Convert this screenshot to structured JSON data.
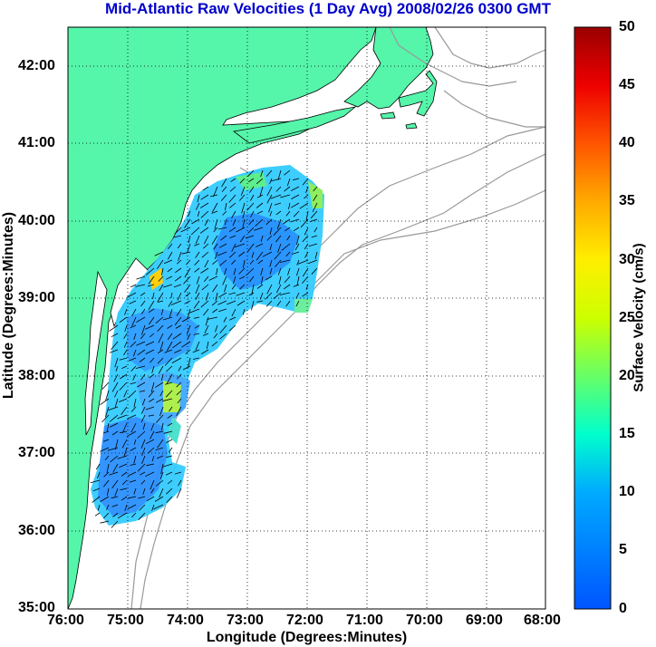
{
  "title": "Mid-Atlantic Raw Velocities (1 Day Avg) 2008/02/26 0300 GMT",
  "xlabel": "Longitude (Degrees:Minutes)",
  "ylabel": "Latitude (Degrees:Minutes)",
  "x_ticks": [
    "76:00",
    "75:00",
    "74:00",
    "73:00",
    "72:00",
    "71:00",
    "70:00",
    "69:00",
    "68:00"
  ],
  "y_ticks": [
    "42:00",
    "41:00",
    "40:00",
    "39:00",
    "38:00",
    "37:00",
    "36:00",
    "35:00"
  ],
  "colorbar": {
    "label": "Surface Velocity (cm/s)",
    "ticks": [
      "50",
      "45",
      "40",
      "35",
      "30",
      "25",
      "20",
      "15",
      "10",
      "5",
      "0"
    ]
  },
  "colors": {
    "land": "#55f5aa",
    "title": "#0000cc",
    "isobath": "#999999",
    "arrow": "#000000"
  }
}
